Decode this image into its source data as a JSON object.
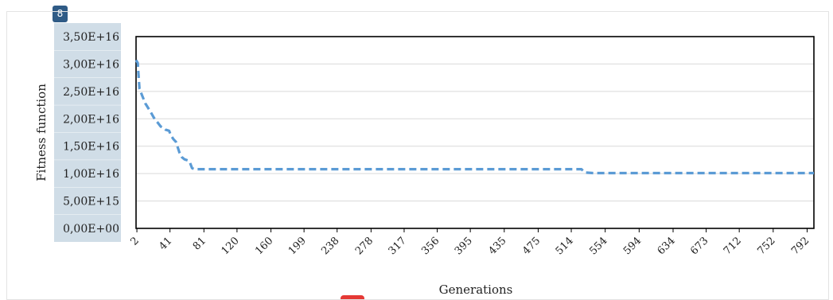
{
  "badge": "8",
  "colors": {
    "line": "#5b9bd5",
    "grid": "#d9d9d9",
    "frame": "#000000",
    "ytick_bg": "#c8d7e3",
    "badge_bg": "#2f5b86",
    "marker": "#e53935"
  },
  "chart_data": {
    "type": "line",
    "ylabel": "Fitness function",
    "xlabel": "Generations",
    "ylim": [
      0,
      35000000000000000
    ],
    "yticks": [
      {
        "v": 35000000000000000,
        "label": "3,50E+16"
      },
      {
        "v": 30000000000000000,
        "label": "3,00E+16"
      },
      {
        "v": 25000000000000000,
        "label": "2,50E+16"
      },
      {
        "v": 20000000000000000,
        "label": "2,00E+16"
      },
      {
        "v": 15000000000000000,
        "label": "1,50E+16"
      },
      {
        "v": 10000000000000000,
        "label": "1,00E+16"
      },
      {
        "v": 5000000000000000,
        "label": "5,00E+15"
      },
      {
        "v": 0,
        "label": "0,00E+00"
      }
    ],
    "xlim": [
      1,
      800
    ],
    "xticks": [
      2,
      41,
      81,
      120,
      160,
      199,
      238,
      278,
      317,
      356,
      395,
      435,
      475,
      514,
      554,
      594,
      634,
      673,
      712,
      752,
      792
    ],
    "grid": true,
    "line_style": "dashed",
    "series": [
      {
        "x": [
          1,
          3,
          4,
          5,
          8,
          12,
          18,
          22,
          26,
          30,
          34,
          36,
          38,
          40,
          42,
          45,
          48,
          52,
          55,
          58,
          62,
          64,
          67,
          70,
          80,
          200,
          400,
          526,
          530,
          540,
          600,
          700,
          800
        ],
        "y": [
          30700000000000000,
          30200000000000000,
          27800000000000000,
          25500000000000000,
          24300000000000000,
          22800000000000000,
          21300000000000000,
          20200000000000000,
          19400000000000000,
          18600000000000000,
          18300000000000000,
          18000000000000000,
          17900000000000000,
          17800000000000000,
          17000000000000000,
          16300000000000000,
          15800000000000000,
          13900000000000000,
          13000000000000000,
          12600000000000000,
          12400000000000000,
          12200000000000000,
          11000000000000000,
          10800000000000000,
          10800000000000000,
          10800000000000000,
          10800000000000000,
          10800000000000000,
          10200000000000000,
          10100000000000000,
          10100000000000000,
          10100000000000000,
          10100000000000000
        ]
      }
    ]
  }
}
